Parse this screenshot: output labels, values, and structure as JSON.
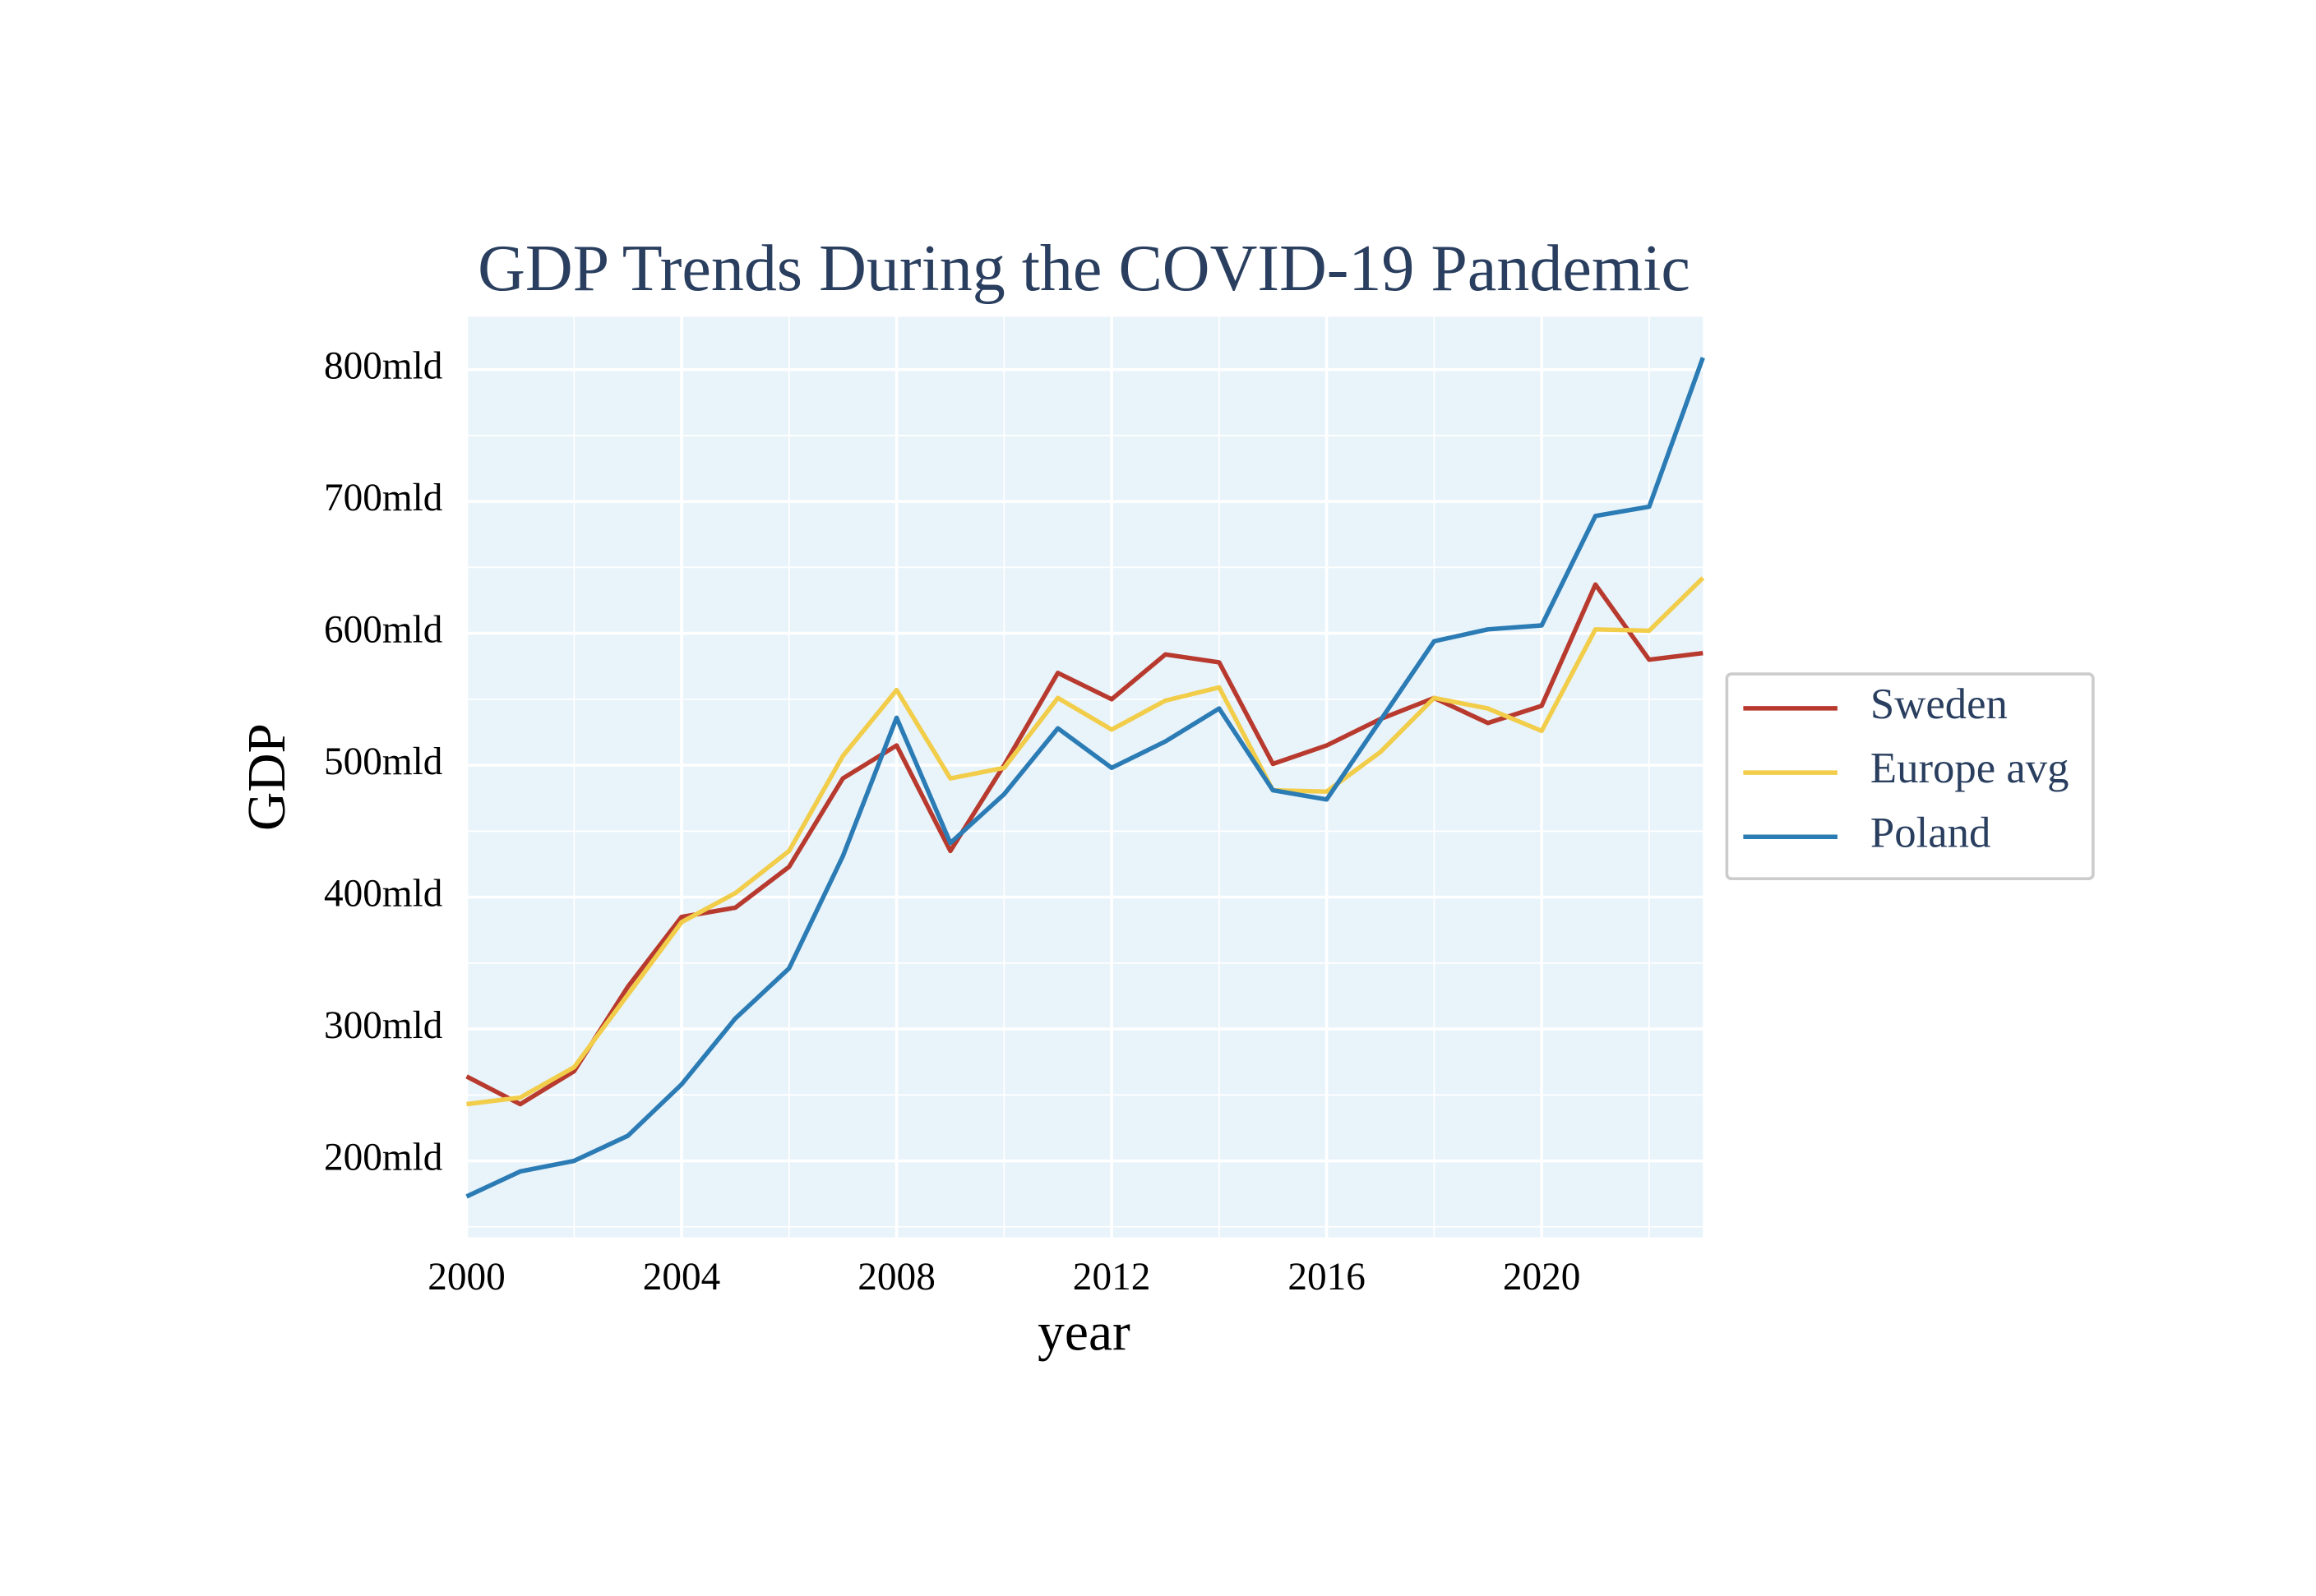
{
  "chart_data": {
    "type": "line",
    "title": "GDP Trends During the COVID-19 Pandemic",
    "x_label": "year",
    "y_label": "GDP",
    "x": [
      2000,
      2001,
      2002,
      2003,
      2004,
      2005,
      2006,
      2007,
      2008,
      2009,
      2010,
      2011,
      2012,
      2013,
      2014,
      2015,
      2016,
      2017,
      2018,
      2019,
      2020,
      2021,
      2022,
      2023
    ],
    "series": [
      {
        "name": "Sweden",
        "color": "#b83a2e",
        "values": [
          264,
          243,
          268,
          332,
          385,
          392,
          423,
          490,
          515,
          435,
          500,
          570,
          550,
          584,
          578,
          501,
          515,
          535,
          551,
          532,
          545,
          637,
          580,
          585
        ]
      },
      {
        "name": "Europe avg",
        "color": "#f2cd4a",
        "values": [
          243,
          248,
          271,
          326,
          381,
          403,
          435,
          507,
          557,
          490,
          498,
          551,
          527,
          549,
          559,
          481,
          480,
          510,
          551,
          543,
          526,
          603,
          602,
          642
        ]
      },
      {
        "name": "Poland",
        "color": "#2b7bb5",
        "values": [
          173,
          192,
          200,
          219,
          258,
          308,
          346,
          431,
          536,
          441,
          478,
          528,
          498,
          518,
          543,
          481,
          474,
          534,
          594,
          603,
          606,
          689,
          696,
          809
        ]
      }
    ],
    "xlim": [
      2000,
      2023
    ],
    "ylim": [
      142,
      840
    ],
    "xticks": [
      2000,
      2004,
      2008,
      2012,
      2016,
      2020
    ],
    "minor_xticks": [
      2002,
      2006,
      2010,
      2014,
      2018,
      2022
    ],
    "yticks": [
      {
        "value": 200,
        "label": "200mld"
      },
      {
        "value": 300,
        "label": "300mld"
      },
      {
        "value": 400,
        "label": "400mld"
      },
      {
        "value": 500,
        "label": "500mld"
      },
      {
        "value": 600,
        "label": "600mld"
      },
      {
        "value": 700,
        "label": "700mld"
      },
      {
        "value": 800,
        "label": "800mld"
      }
    ],
    "minor_yticks": [
      150,
      250,
      350,
      450,
      550,
      650,
      750
    ],
    "grid": true,
    "legend": "right",
    "background": "#e8f3fa"
  }
}
